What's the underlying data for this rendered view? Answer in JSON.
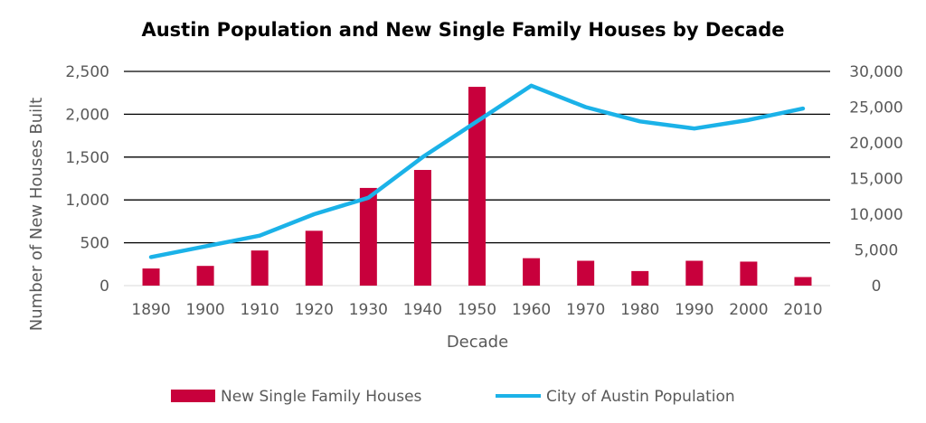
{
  "chart_data": {
    "type": "bar",
    "title": "Austin Population and New Single Family Houses by Decade",
    "xlabel": "Decade",
    "ylabel": "Number of New Houses Built",
    "y2label": "",
    "categories": [
      "1890",
      "1900",
      "1910",
      "1920",
      "1930",
      "1940",
      "1950",
      "1960",
      "1970",
      "1980",
      "1990",
      "2000",
      "2010"
    ],
    "ylim": [
      0,
      2500
    ],
    "y2lim": [
      0,
      30000
    ],
    "yticks": [
      "0",
      "500",
      "1,000",
      "1,500",
      "2,000",
      "2,500"
    ],
    "y2ticks": [
      "0",
      "5,000",
      "10,000",
      "15,000",
      "20,000",
      "25,000",
      "30,000"
    ],
    "grid": true,
    "legend_position": "bottom",
    "series": [
      {
        "name": "New Single Family Houses",
        "type": "bar",
        "axis": "left",
        "color": "#C8003C",
        "values": [
          200,
          230,
          410,
          640,
          1140,
          1350,
          2320,
          320,
          290,
          170,
          290,
          280,
          100
        ]
      },
      {
        "name": "City of Austin Population",
        "type": "line",
        "axis": "right",
        "color": "#1BB2E8",
        "values": [
          4000,
          5500,
          7000,
          10000,
          12300,
          18000,
          23000,
          28000,
          25000,
          23000,
          22000,
          23200,
          24800
        ]
      }
    ]
  }
}
